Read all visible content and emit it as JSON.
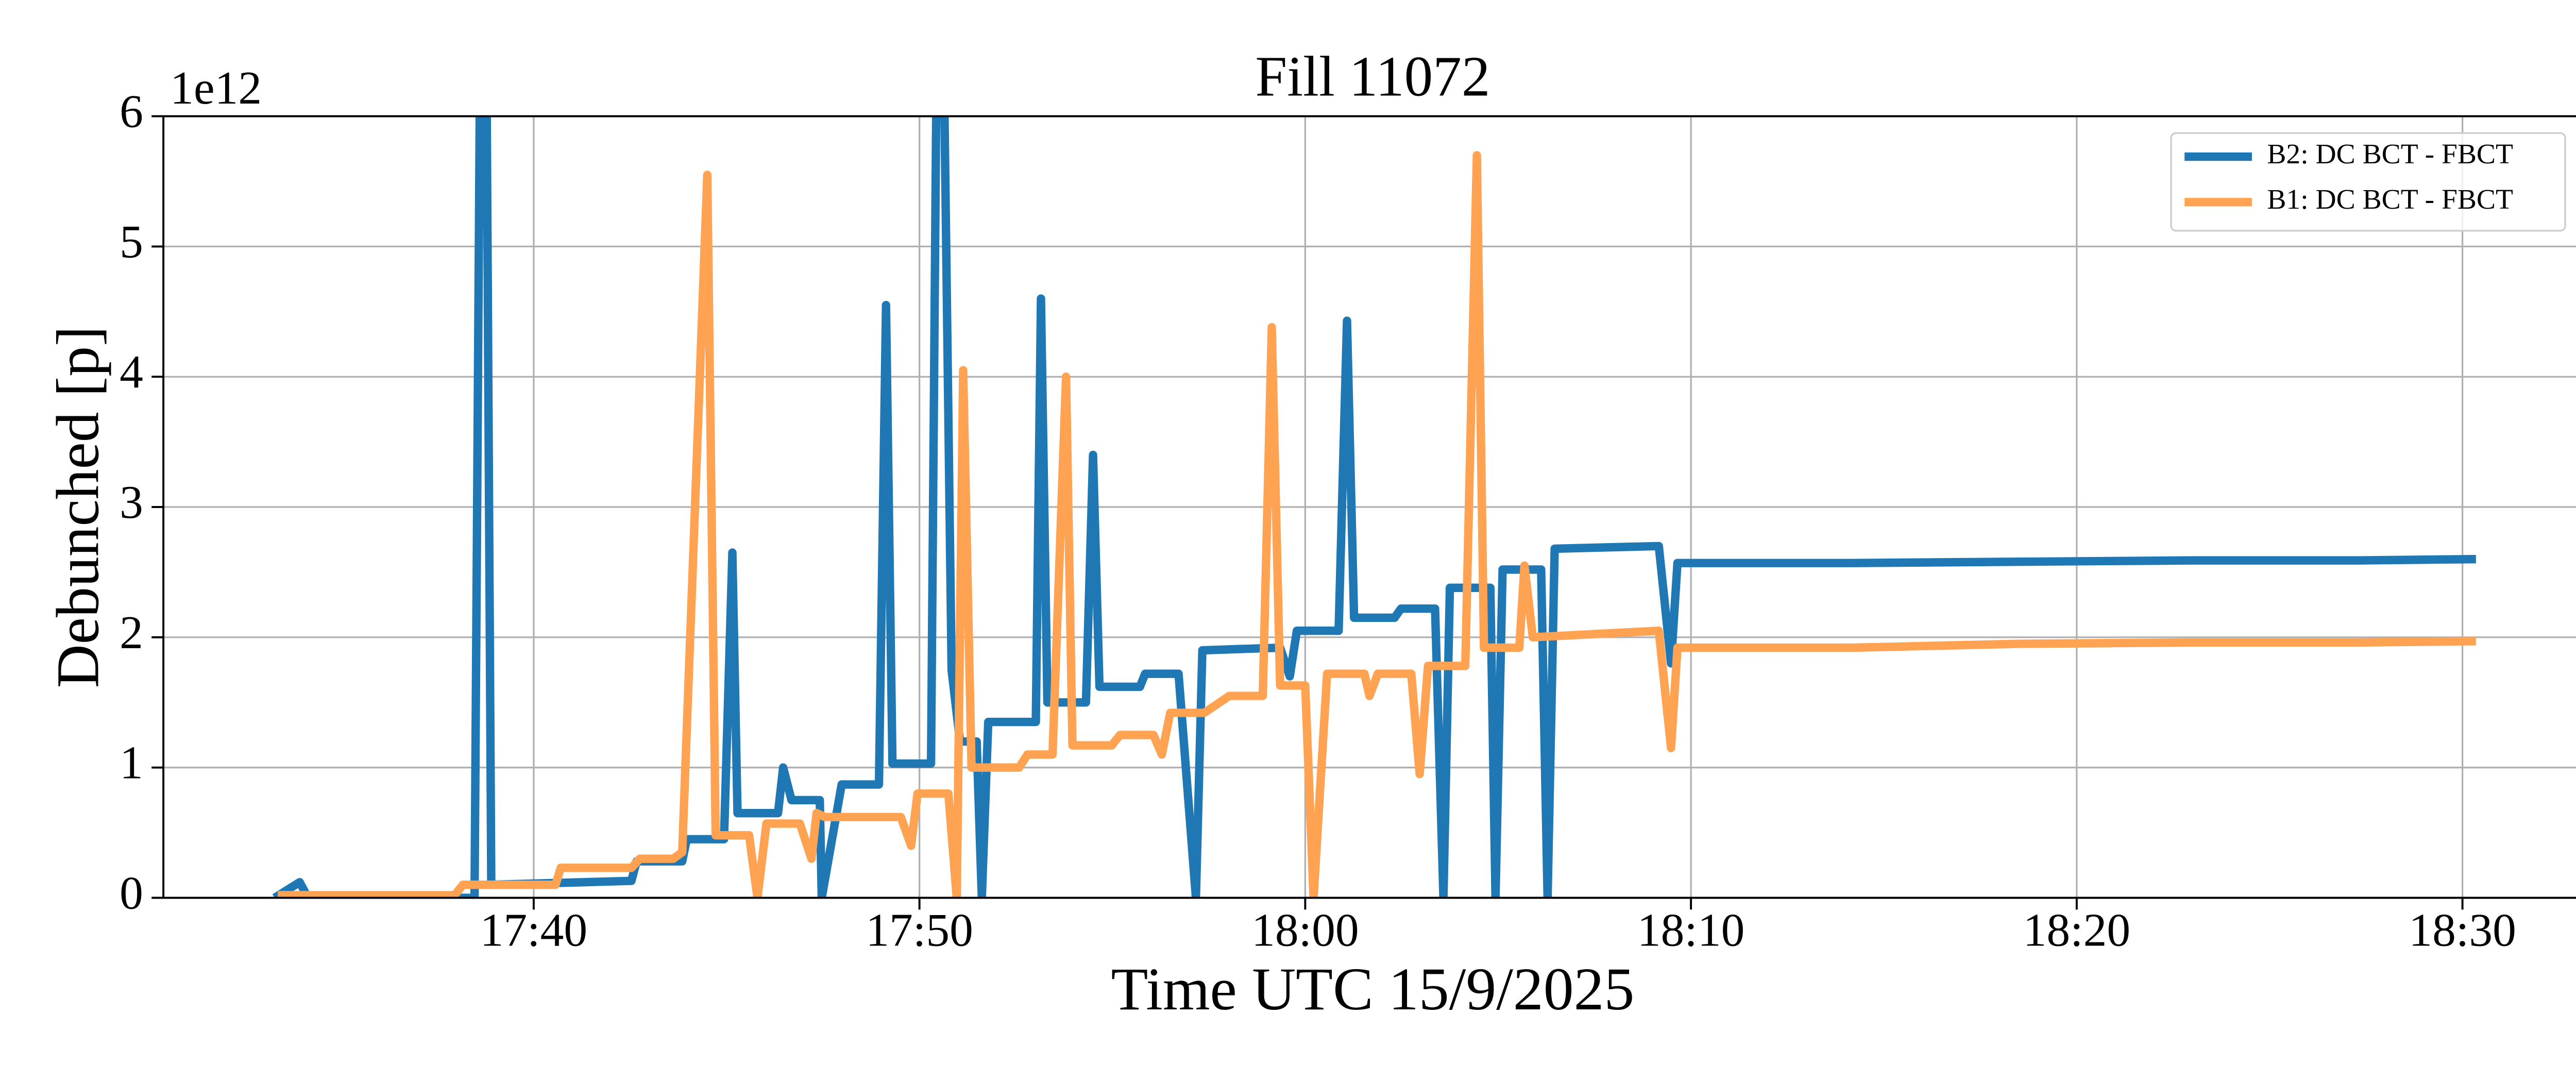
{
  "chart_data": {
    "type": "line",
    "title": "Fill 11072",
    "xlabel": "Time UTC 15/9/2025",
    "ylabel": "Debunched [p]",
    "y_offset_label": "1e12",
    "xlim": [
      "17:30:24",
      "18:33:06"
    ],
    "xticks": [
      "17:40",
      "17:50",
      "18:00",
      "18:10",
      "18:20",
      "18:30"
    ],
    "ylim": [
      0,
      6
    ],
    "yticks": [
      0,
      1,
      2,
      3,
      4,
      5,
      6
    ],
    "grid": true,
    "legend": "upper right",
    "series": [
      {
        "name": "B2: DC BCT - FBCT",
        "color": "#1f77b4",
        "x": [
          "17:33:17",
          "17:33:56",
          "17:34:09",
          "17:38:28",
          "17:38:36",
          "17:38:47",
          "17:38:54",
          "17:42:32",
          "17:42:40",
          "17:43:51",
          "17:43:58",
          "17:44:56",
          "17:45:09",
          "17:45:17",
          "17:46:20",
          "17:46:28",
          "17:46:41",
          "17:47:25",
          "17:47:28",
          "17:47:59",
          "17:48:57",
          "17:49:08",
          "17:49:18",
          "17:50:18",
          "17:50:26",
          "17:50:39",
          "17:50:50",
          "17:51:03",
          "17:51:29",
          "17:51:37",
          "17:51:47",
          "17:53:01",
          "17:53:09",
          "17:53:19",
          "17:54:19",
          "17:54:30",
          "17:54:40",
          "17:55:43",
          "17:55:51",
          "17:56:43",
          "17:57:10",
          "17:57:20",
          "17:59:21",
          "17:59:36",
          "17:59:47",
          "18:00:52",
          "18:01:05",
          "18:01:16",
          "18:02:19",
          "18:02:29",
          "18:03:22",
          "18:03:35",
          "18:03:45",
          "18:04:48",
          "18:04:56",
          "18:05:07",
          "18:06:07",
          "18:06:17",
          "18:06:28",
          "18:09:10",
          "18:09:29",
          "18:09:39",
          "18:14:11",
          "18:18:33",
          "18:22:55",
          "18:27:17",
          "18:30:21"
        ],
        "values": [
          0,
          0.12,
          0,
          0,
          6,
          6,
          0.1,
          0.13,
          0.28,
          0.28,
          0.45,
          0.45,
          2.65,
          0.65,
          0.65,
          1.0,
          0.75,
          0.75,
          0,
          0.87,
          0.87,
          4.55,
          1.03,
          1.03,
          6,
          6,
          1.75,
          1.2,
          1.2,
          0,
          1.35,
          1.35,
          4.6,
          1.5,
          1.5,
          3.4,
          1.62,
          1.62,
          1.72,
          1.72,
          0,
          1.9,
          1.92,
          1.7,
          2.05,
          2.05,
          4.43,
          2.15,
          2.15,
          2.22,
          2.22,
          0,
          2.38,
          2.38,
          0,
          2.52,
          2.52,
          0,
          2.68,
          2.7,
          1.8,
          2.57,
          2.57,
          2.58,
          2.59,
          2.59,
          2.6
        ]
      },
      {
        "name": "B1: DC BCT - FBCT",
        "color": "#ffa352",
        "x": [
          "17:33:22",
          "17:37:57",
          "17:38:10",
          "17:40:34",
          "17:40:42",
          "17:42:32",
          "17:42:45",
          "17:43:37",
          "17:43:51",
          "17:44:30",
          "17:44:43",
          "17:45:35",
          "17:45:48",
          "17:46:02",
          "17:46:54",
          "17:47:12",
          "17:47:20",
          "17:47:33",
          "17:49:31",
          "17:49:47",
          "17:49:57",
          "17:50:45",
          "17:50:58",
          "17:51:08",
          "17:51:21",
          "17:52:35",
          "17:52:48",
          "17:53:27",
          "17:53:48",
          "17:53:58",
          "17:54:59",
          "17:55:12",
          "17:56:04",
          "17:56:17",
          "17:56:30",
          "17:57:23",
          "17:58:02",
          "17:58:54",
          "17:59:08",
          "17:59:21",
          "18:00:00",
          "18:00:13",
          "18:00:34",
          "18:01:32",
          "18:01:40",
          "18:01:53",
          "18:02:45",
          "18:02:58",
          "18:03:11",
          "18:04:09",
          "18:04:27",
          "18:04:38",
          "18:05:33",
          "18:05:41",
          "18:05:54",
          "18:09:10",
          "18:09:29",
          "18:09:39",
          "18:14:11",
          "18:18:33",
          "18:22:55",
          "18:27:17",
          "18:30:21"
        ],
        "values": [
          0.02,
          0.02,
          0.1,
          0.1,
          0.23,
          0.23,
          0.3,
          0.3,
          0.35,
          5.55,
          0.48,
          0.48,
          0,
          0.57,
          0.57,
          0.3,
          0.65,
          0.62,
          0.62,
          0.4,
          0.8,
          0.8,
          0,
          4.05,
          1.0,
          1.0,
          1.1,
          1.1,
          4.0,
          1.17,
          1.17,
          1.25,
          1.25,
          1.1,
          1.42,
          1.42,
          1.55,
          1.55,
          4.38,
          1.63,
          1.63,
          0,
          1.72,
          1.72,
          1.55,
          1.72,
          1.72,
          0.95,
          1.78,
          1.78,
          5.7,
          1.92,
          1.92,
          2.55,
          2.0,
          2.05,
          1.15,
          1.92,
          1.92,
          1.95,
          1.96,
          1.96,
          1.97
        ]
      }
    ]
  }
}
